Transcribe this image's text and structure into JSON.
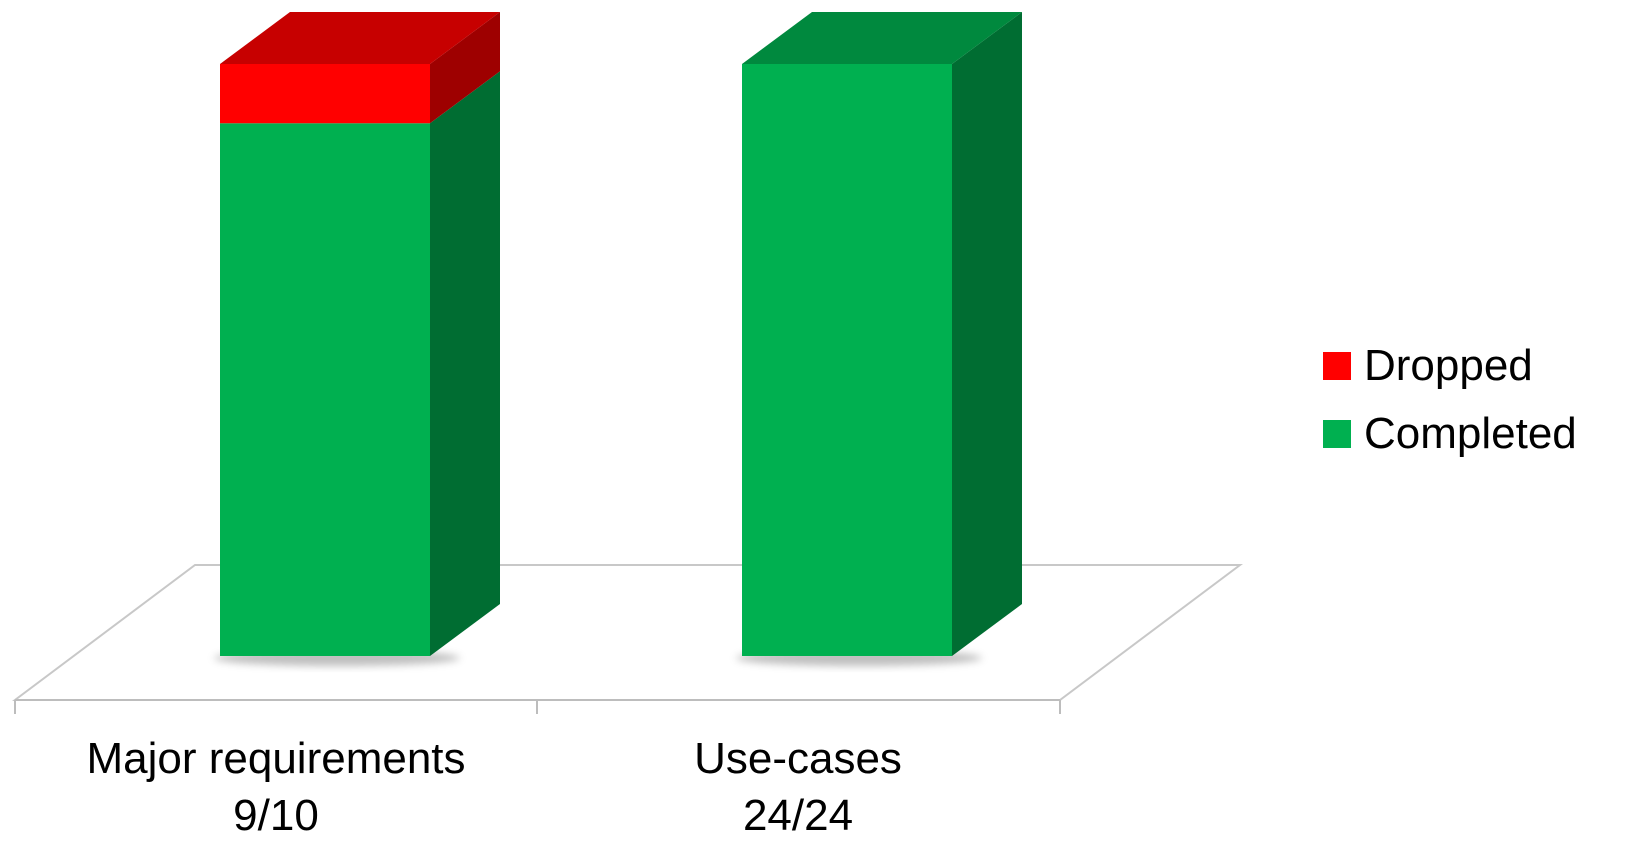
{
  "chart_data": {
    "type": "bar",
    "stacked": true,
    "three_d": true,
    "normalized_to_percent": true,
    "title": "",
    "xlabel": "",
    "ylabel": "",
    "grid": false,
    "legend_position": "right",
    "categories": [
      {
        "line1": "Major requirements",
        "line2": "9/10"
      },
      {
        "line1": "Use-cases",
        "line2": "24/24"
      }
    ],
    "series": [
      {
        "name": "Completed",
        "color": "#00B050",
        "values": [
          9,
          24
        ]
      },
      {
        "name": "Dropped",
        "color": "#FF0000",
        "values": [
          1,
          0
        ]
      }
    ],
    "legend": [
      {
        "name": "Dropped",
        "color": "#FF0000"
      },
      {
        "name": "Completed",
        "color": "#00B050"
      }
    ]
  }
}
